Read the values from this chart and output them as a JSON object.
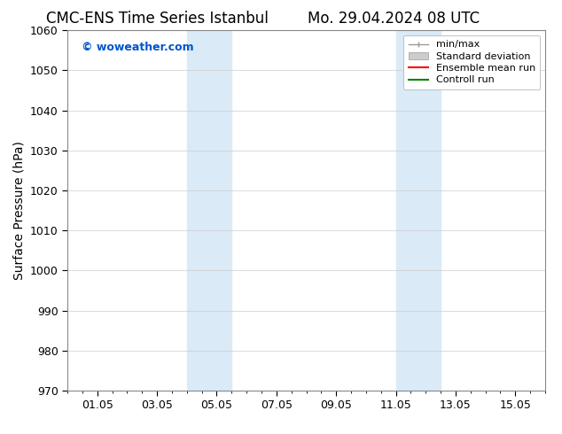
{
  "title_left": "CMC-ENS Time Series Istanbul",
  "title_right": "Mo. 29.04.2024 08 UTC",
  "ylabel": "Surface Pressure (hPa)",
  "ylim": [
    970,
    1060
  ],
  "yticks": [
    970,
    980,
    990,
    1000,
    1010,
    1020,
    1030,
    1040,
    1050,
    1060
  ],
  "xlim": [
    0,
    16
  ],
  "xtick_labels": [
    "01.05",
    "03.05",
    "05.05",
    "07.05",
    "09.05",
    "11.05",
    "13.05",
    "15.05"
  ],
  "xtick_positions": [
    1,
    3,
    5,
    7,
    9,
    11,
    13,
    15
  ],
  "minor_xtick_positions": [
    0,
    0.5,
    1,
    1.5,
    2,
    2.5,
    3,
    3.5,
    4,
    4.5,
    5,
    5.5,
    6,
    6.5,
    7,
    7.5,
    8,
    8.5,
    9,
    9.5,
    10,
    10.5,
    11,
    11.5,
    12,
    12.5,
    13,
    13.5,
    14,
    14.5,
    15,
    15.5,
    16
  ],
  "shaded_bands": [
    {
      "x_start": 4.0,
      "x_end": 5.5
    },
    {
      "x_start": 11.0,
      "x_end": 12.5
    }
  ],
  "shade_color": "#daeaf7",
  "watermark_text": "© woweather.com",
  "watermark_color": "#0055cc",
  "background_color": "#ffffff",
  "legend_items": [
    {
      "label": "min/max",
      "color": "#999999"
    },
    {
      "label": "Standard deviation",
      "color": "#cccccc"
    },
    {
      "label": "Ensemble mean run",
      "color": "#ff0000"
    },
    {
      "label": "Controll run",
      "color": "#008000"
    }
  ],
  "grid_color": "#cccccc",
  "title_fontsize": 12,
  "axis_label_fontsize": 10,
  "tick_fontsize": 9,
  "legend_fontsize": 8
}
